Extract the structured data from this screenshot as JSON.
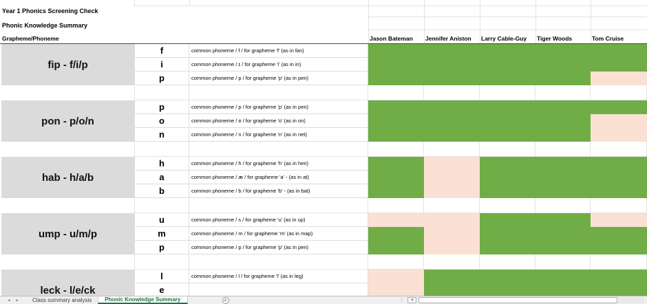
{
  "titles": {
    "workbook_title": "Year 1 Phonics Screening Check",
    "sheet_title": "Phonic Knowledge Summary",
    "row_axis_header": "Grapheme/Phoneme"
  },
  "students": [
    "Jason Bateman",
    "Jennifer Aniston",
    "Larry Cable-Guy",
    "Tiger Woods",
    "Tom Cruise"
  ],
  "result_colors": {
    "pass": "#70AD47",
    "fail": "#FBE1D3"
  },
  "group_label_background": "#DBDBDB",
  "groups": [
    {
      "label": "fip - f/i/p",
      "rows": [
        {
          "letter": "f",
          "description": "common phoneme / f / for grapheme 'f' (as in fan)",
          "results": [
            "pass",
            "pass",
            "pass",
            "pass",
            "pass"
          ]
        },
        {
          "letter": "i",
          "description": "common phoneme / ɪ / for grapheme 'i' (as in in)",
          "results": [
            "pass",
            "pass",
            "pass",
            "pass",
            "pass"
          ]
        },
        {
          "letter": "p",
          "description": "common phoneme / p / for grapheme 'p' (as in pen)",
          "results": [
            "pass",
            "pass",
            "pass",
            "pass",
            "fail"
          ]
        }
      ]
    },
    {
      "label": "pon - p/o/n",
      "rows": [
        {
          "letter": "p",
          "description": "common phoneme / p / for grapheme 'p' (as in pen)",
          "results": [
            "pass",
            "pass",
            "pass",
            "pass",
            "pass"
          ]
        },
        {
          "letter": "o",
          "description": "common phoneme / ɒ / for grapheme 'o' (as in on)",
          "results": [
            "pass",
            "pass",
            "pass",
            "pass",
            "fail"
          ]
        },
        {
          "letter": "n",
          "description": "common phoneme / n / for grapheme 'n' (as in net)",
          "results": [
            "pass",
            "pass",
            "pass",
            "pass",
            "fail"
          ]
        }
      ]
    },
    {
      "label": "hab - h/a/b",
      "rows": [
        {
          "letter": "h",
          "description": "common phoneme / h / for grapheme 'h' (as in hen)",
          "results": [
            "pass",
            "fail",
            "pass",
            "pass",
            "pass"
          ]
        },
        {
          "letter": "a",
          "description": "common phoneme / æ / for grapheme 'a' - (as in at)",
          "results": [
            "pass",
            "fail",
            "pass",
            "pass",
            "pass"
          ]
        },
        {
          "letter": "b",
          "description": "common phoneme / b / for grapheme 'b' - (as in bat)",
          "results": [
            "pass",
            "fail",
            "pass",
            "pass",
            "pass"
          ]
        }
      ]
    },
    {
      "label": "ump - u/m/p",
      "rows": [
        {
          "letter": "u",
          "description": "common phoneme / ʌ / for grapheme 'u' (as in up)",
          "results": [
            "fail",
            "fail",
            "pass",
            "pass",
            "fail"
          ]
        },
        {
          "letter": "m",
          "description": "common phoneme / m / for grapheme 'm' (as in map)",
          "results": [
            "pass",
            "fail",
            "pass",
            "pass",
            "pass"
          ]
        },
        {
          "letter": "p",
          "description": "common phoneme / p / for grapheme 'p' (as in pen)",
          "results": [
            "pass",
            "fail",
            "pass",
            "pass",
            "pass"
          ]
        }
      ]
    },
    {
      "label": "leck - l/e/ck",
      "rows": [
        {
          "letter": "l",
          "description": "common phoneme / l / for grapheme 'l' (as in leg)",
          "results": [
            "fail",
            "pass",
            "pass",
            "pass",
            "pass"
          ]
        },
        {
          "letter": "e",
          "description": "",
          "results": [
            "fail",
            "pass",
            "pass",
            "pass",
            "pass"
          ]
        }
      ]
    }
  ],
  "sheet_tabs": {
    "tabs": [
      {
        "label": "Class summary analysis",
        "active": false
      },
      {
        "label": "Phonic Knowledge Summary",
        "active": true
      }
    ],
    "add_button": "+"
  },
  "icons": {
    "nav_left": "◄",
    "nav_right": "►",
    "scroll_left": "◄",
    "splitter": "⋮"
  }
}
